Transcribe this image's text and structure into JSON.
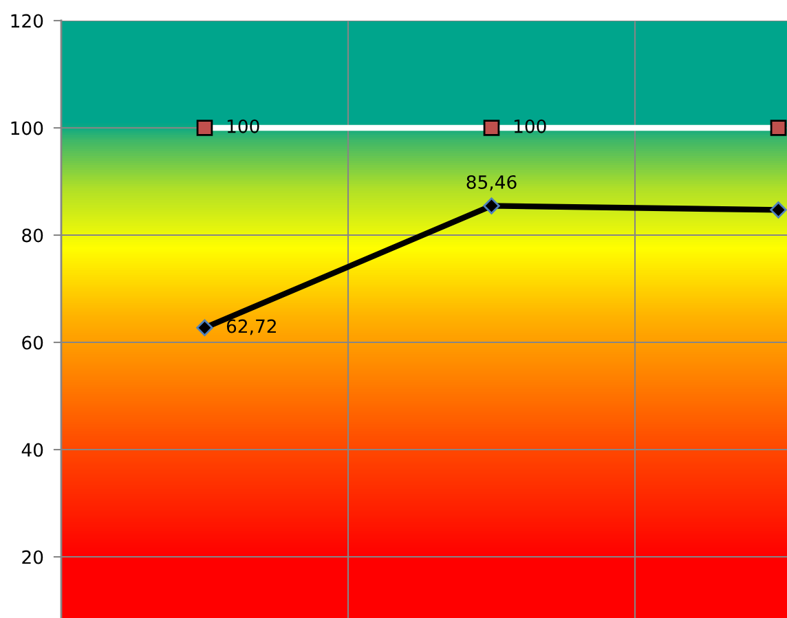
{
  "chart_data": {
    "type": "line",
    "categories": [
      null,
      null,
      null
    ],
    "series": [
      {
        "name": null,
        "color": "#c0504d",
        "marker": "square",
        "values": [
          100,
          100,
          100
        ],
        "value_labels": [
          "100",
          "100",
          null
        ]
      },
      {
        "name": null,
        "color": "#000000",
        "marker": "diamond",
        "values": [
          62.72,
          85.46,
          84.7
        ],
        "value_labels": [
          "62,72",
          "85,46",
          null
        ]
      }
    ],
    "ylim": [
      8.6,
      120
    ],
    "yticks": [
      20,
      40,
      60,
      80,
      100,
      120
    ],
    "grid": true,
    "legend": false,
    "line_style": "solid"
  }
}
